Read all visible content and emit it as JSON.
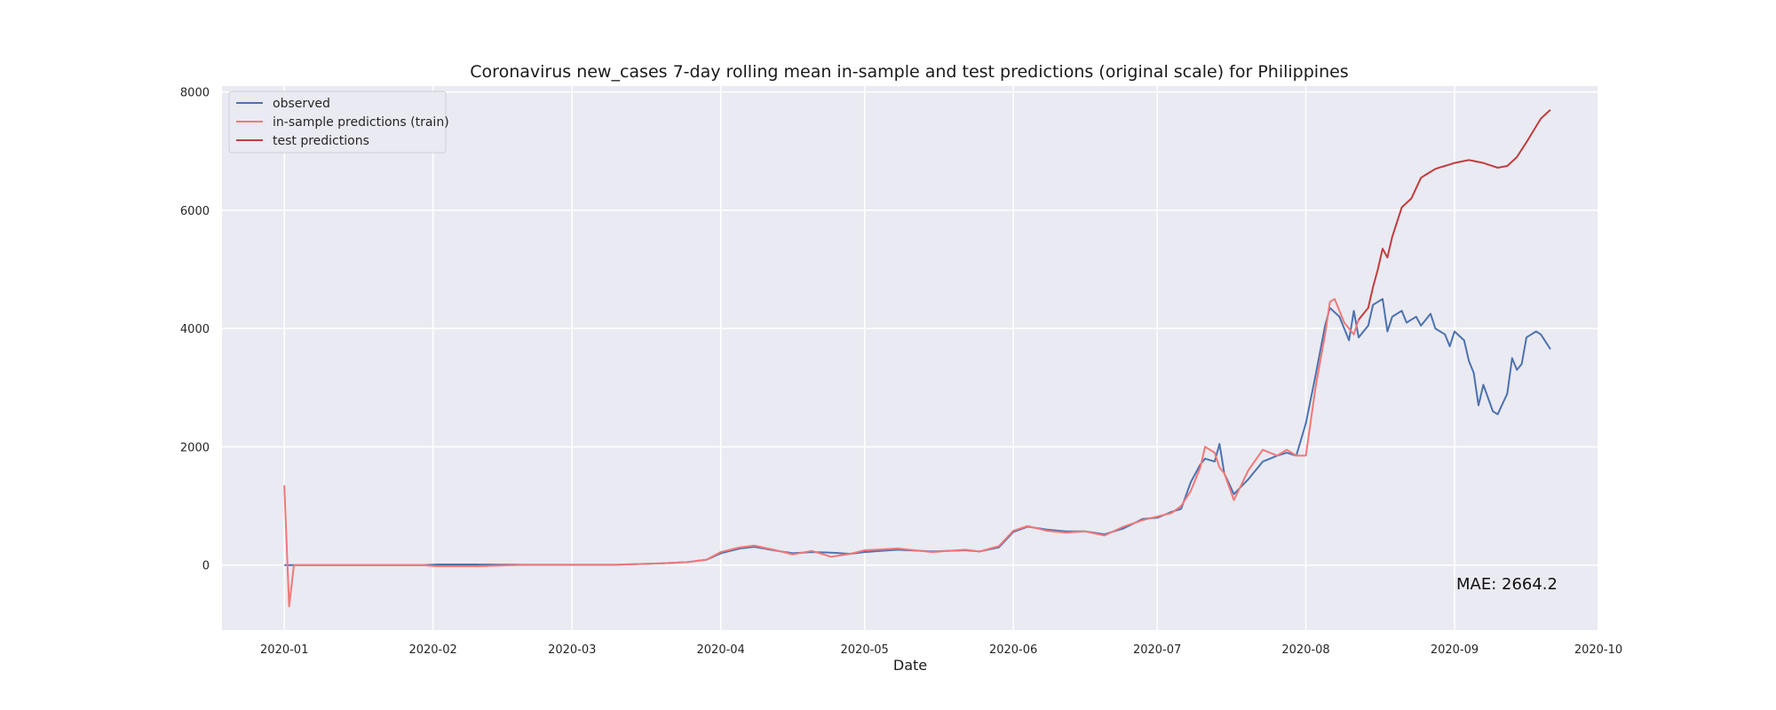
{
  "chart_data": {
    "type": "line",
    "title": "Coronavirus new_cases 7-day rolling mean in-sample and test predictions (original scale) for Philippines",
    "xlabel": "Date",
    "ylabel": "",
    "x_ticks": [
      "2020-01",
      "2020-02",
      "2020-03",
      "2020-04",
      "2020-05",
      "2020-06",
      "2020-07",
      "2020-08",
      "2020-09",
      "2020-10"
    ],
    "y_ticks": [
      0,
      2000,
      4000,
      6000,
      8000
    ],
    "xlim": [
      "2019-12-19",
      "2020-10-01"
    ],
    "ylim": [
      -1100,
      8100
    ],
    "grid": true,
    "legend_position": "top-left",
    "annotation": "MAE: 2664.2",
    "series": [
      {
        "name": "observed",
        "color": "#4c72b0",
        "points": [
          [
            "2020-01-01",
            0
          ],
          [
            "2020-01-15",
            0
          ],
          [
            "2020-01-30",
            0
          ],
          [
            "2020-02-02",
            10
          ],
          [
            "2020-02-10",
            10
          ],
          [
            "2020-02-20",
            5
          ],
          [
            "2020-03-01",
            5
          ],
          [
            "2020-03-10",
            5
          ],
          [
            "2020-03-20",
            30
          ],
          [
            "2020-03-25",
            50
          ],
          [
            "2020-03-29",
            90
          ],
          [
            "2020-04-01",
            200
          ],
          [
            "2020-04-05",
            280
          ],
          [
            "2020-04-08",
            310
          ],
          [
            "2020-04-12",
            250
          ],
          [
            "2020-04-16",
            200
          ],
          [
            "2020-04-20",
            220
          ],
          [
            "2020-04-24",
            210
          ],
          [
            "2020-04-28",
            190
          ],
          [
            "2020-05-01",
            220
          ],
          [
            "2020-05-08",
            260
          ],
          [
            "2020-05-15",
            230
          ],
          [
            "2020-05-22",
            250
          ],
          [
            "2020-05-25",
            230
          ],
          [
            "2020-05-29",
            300
          ],
          [
            "2020-06-01",
            560
          ],
          [
            "2020-06-04",
            650
          ],
          [
            "2020-06-08",
            600
          ],
          [
            "2020-06-12",
            570
          ],
          [
            "2020-06-16",
            570
          ],
          [
            "2020-06-20",
            520
          ],
          [
            "2020-06-24",
            620
          ],
          [
            "2020-06-28",
            780
          ],
          [
            "2020-07-01",
            800
          ],
          [
            "2020-07-04",
            900
          ],
          [
            "2020-07-06",
            950
          ],
          [
            "2020-07-08",
            1400
          ],
          [
            "2020-07-10",
            1700
          ],
          [
            "2020-07-11",
            1800
          ],
          [
            "2020-07-13",
            1750
          ],
          [
            "2020-07-14",
            2050
          ],
          [
            "2020-07-15",
            1550
          ],
          [
            "2020-07-17",
            1200
          ],
          [
            "2020-07-20",
            1450
          ],
          [
            "2020-07-23",
            1750
          ],
          [
            "2020-07-26",
            1850
          ],
          [
            "2020-07-28",
            1900
          ],
          [
            "2020-07-30",
            1850
          ],
          [
            "2020-08-01",
            2400
          ],
          [
            "2020-08-03",
            3200
          ],
          [
            "2020-08-05",
            4050
          ],
          [
            "2020-08-06",
            4350
          ],
          [
            "2020-08-08",
            4200
          ],
          [
            "2020-08-10",
            3800
          ],
          [
            "2020-08-11",
            4300
          ],
          [
            "2020-08-12",
            3850
          ],
          [
            "2020-08-14",
            4050
          ],
          [
            "2020-08-15",
            4400
          ],
          [
            "2020-08-17",
            4500
          ],
          [
            "2020-08-18",
            3950
          ],
          [
            "2020-08-19",
            4200
          ],
          [
            "2020-08-21",
            4300
          ],
          [
            "2020-08-22",
            4100
          ],
          [
            "2020-08-24",
            4200
          ],
          [
            "2020-08-25",
            4050
          ],
          [
            "2020-08-27",
            4250
          ],
          [
            "2020-08-28",
            4000
          ],
          [
            "2020-08-30",
            3900
          ],
          [
            "2020-08-31",
            3700
          ],
          [
            "2020-09-01",
            3950
          ],
          [
            "2020-09-03",
            3800
          ],
          [
            "2020-09-04",
            3450
          ],
          [
            "2020-09-05",
            3250
          ],
          [
            "2020-09-06",
            2700
          ],
          [
            "2020-09-07",
            3050
          ],
          [
            "2020-09-09",
            2600
          ],
          [
            "2020-09-10",
            2550
          ],
          [
            "2020-09-12",
            2900
          ],
          [
            "2020-09-13",
            3500
          ],
          [
            "2020-09-14",
            3300
          ],
          [
            "2020-09-15",
            3400
          ],
          [
            "2020-09-16",
            3850
          ],
          [
            "2020-09-18",
            3950
          ],
          [
            "2020-09-19",
            3900
          ],
          [
            "2020-09-21",
            3650
          ]
        ]
      },
      {
        "name": "in-sample predictions (train)",
        "color": "#f07878",
        "points": [
          [
            "2020-01-01",
            1350
          ],
          [
            "2020-01-02",
            -700
          ],
          [
            "2020-01-03",
            0
          ],
          [
            "2020-01-15",
            0
          ],
          [
            "2020-01-30",
            0
          ],
          [
            "2020-02-02",
            -20
          ],
          [
            "2020-02-10",
            -20
          ],
          [
            "2020-02-20",
            5
          ],
          [
            "2020-03-01",
            5
          ],
          [
            "2020-03-10",
            5
          ],
          [
            "2020-03-20",
            30
          ],
          [
            "2020-03-25",
            50
          ],
          [
            "2020-03-29",
            90
          ],
          [
            "2020-04-01",
            220
          ],
          [
            "2020-04-05",
            300
          ],
          [
            "2020-04-08",
            330
          ],
          [
            "2020-04-12",
            260
          ],
          [
            "2020-04-16",
            180
          ],
          [
            "2020-04-20",
            240
          ],
          [
            "2020-04-24",
            140
          ],
          [
            "2020-04-28",
            190
          ],
          [
            "2020-05-01",
            250
          ],
          [
            "2020-05-08",
            280
          ],
          [
            "2020-05-15",
            220
          ],
          [
            "2020-05-22",
            260
          ],
          [
            "2020-05-25",
            230
          ],
          [
            "2020-05-29",
            320
          ],
          [
            "2020-06-01",
            580
          ],
          [
            "2020-06-04",
            660
          ],
          [
            "2020-06-08",
            580
          ],
          [
            "2020-06-12",
            550
          ],
          [
            "2020-06-16",
            570
          ],
          [
            "2020-06-20",
            500
          ],
          [
            "2020-06-24",
            650
          ],
          [
            "2020-06-28",
            760
          ],
          [
            "2020-07-01",
            820
          ],
          [
            "2020-07-04",
            880
          ],
          [
            "2020-07-06",
            1000
          ],
          [
            "2020-07-08",
            1250
          ],
          [
            "2020-07-10",
            1650
          ],
          [
            "2020-07-11",
            2000
          ],
          [
            "2020-07-13",
            1900
          ],
          [
            "2020-07-14",
            1650
          ],
          [
            "2020-07-15",
            1550
          ],
          [
            "2020-07-17",
            1100
          ],
          [
            "2020-07-20",
            1600
          ],
          [
            "2020-07-23",
            1950
          ],
          [
            "2020-07-26",
            1850
          ],
          [
            "2020-07-28",
            1950
          ],
          [
            "2020-07-30",
            1850
          ],
          [
            "2020-08-01",
            1850
          ],
          [
            "2020-08-03",
            3000
          ],
          [
            "2020-08-05",
            3900
          ],
          [
            "2020-08-06",
            4450
          ],
          [
            "2020-08-07",
            4500
          ],
          [
            "2020-08-09",
            4100
          ],
          [
            "2020-08-11",
            3900
          ],
          [
            "2020-08-12",
            4150
          ]
        ]
      },
      {
        "name": "test predictions",
        "color": "#c03d3e",
        "points": [
          [
            "2020-08-12",
            4150
          ],
          [
            "2020-08-14",
            4350
          ],
          [
            "2020-08-15",
            4700
          ],
          [
            "2020-08-16",
            5000
          ],
          [
            "2020-08-17",
            5350
          ],
          [
            "2020-08-18",
            5200
          ],
          [
            "2020-08-19",
            5550
          ],
          [
            "2020-08-21",
            6050
          ],
          [
            "2020-08-23",
            6200
          ],
          [
            "2020-08-25",
            6550
          ],
          [
            "2020-08-28",
            6700
          ],
          [
            "2020-09-01",
            6800
          ],
          [
            "2020-09-04",
            6850
          ],
          [
            "2020-09-07",
            6800
          ],
          [
            "2020-09-10",
            6720
          ],
          [
            "2020-09-12",
            6750
          ],
          [
            "2020-09-14",
            6900
          ],
          [
            "2020-09-16",
            7150
          ],
          [
            "2020-09-19",
            7550
          ],
          [
            "2020-09-21",
            7700
          ]
        ]
      }
    ]
  }
}
